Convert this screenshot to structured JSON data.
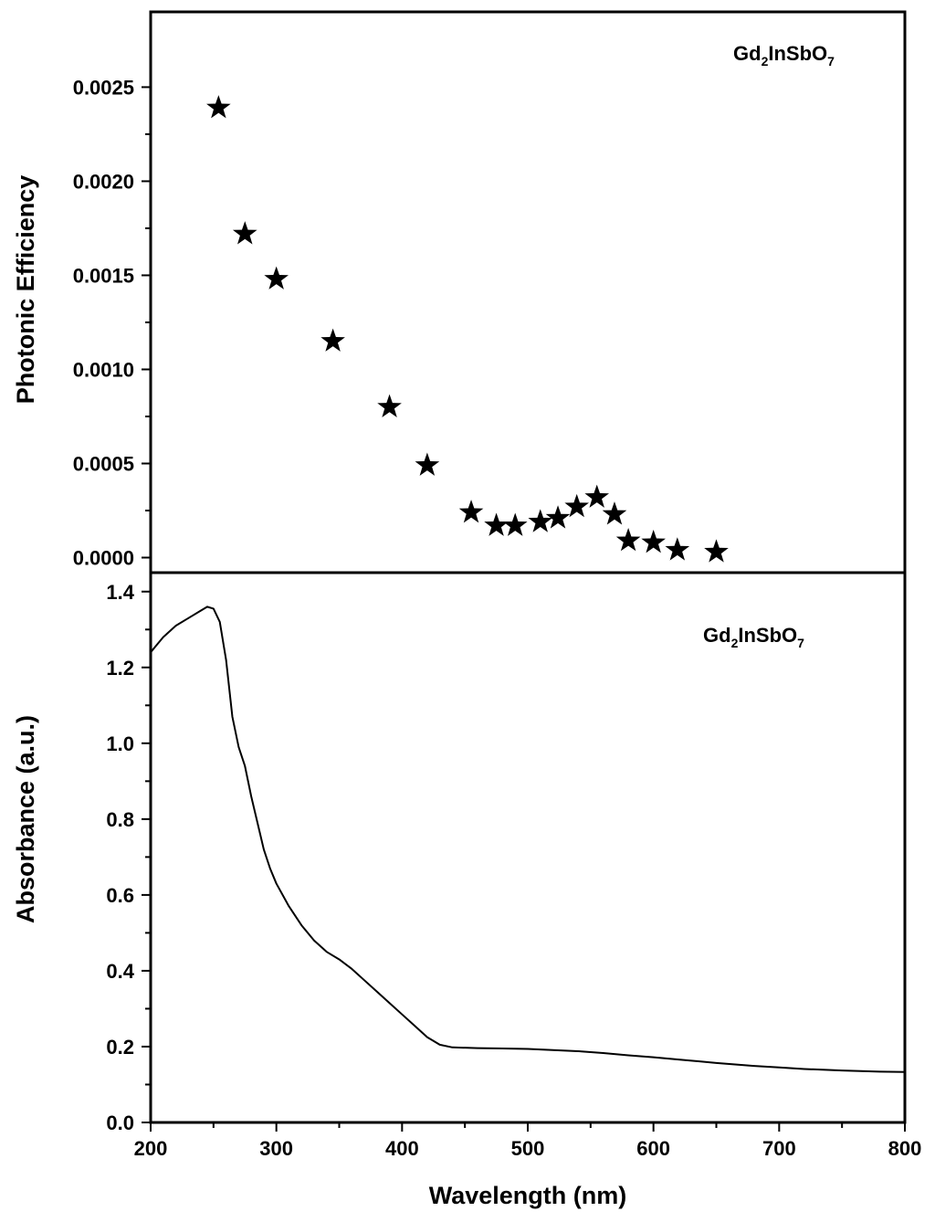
{
  "chart_data": [
    {
      "type": "scatter",
      "panel": "top",
      "ylabel": "Photonic Efficiency",
      "xlabel": "",
      "xlim": [
        200,
        800
      ],
      "ylim": [
        -8e-05,
        0.0029
      ],
      "yticks": [
        "0.0000",
        "0.0005",
        "0.0010",
        "0.0015",
        "0.0020",
        "0.0025"
      ],
      "ytick_values": [
        0,
        0.0005,
        0.001,
        0.0015,
        0.002,
        0.0025
      ],
      "marker": "star",
      "annotation": {
        "base": "Gd",
        "sub1": "2",
        "mid": "InSbO",
        "sub2": "7"
      },
      "series": [
        {
          "name": "Gd2InSbO7",
          "x": [
            254,
            275,
            300,
            345,
            390,
            420,
            455,
            475,
            490,
            510,
            524,
            539,
            555,
            569,
            580,
            600,
            619,
            650
          ],
          "y": [
            0.00239,
            0.00172,
            0.00148,
            0.00115,
            0.0008,
            0.00049,
            0.00024,
            0.00017,
            0.00017,
            0.00019,
            0.00021,
            0.00027,
            0.00032,
            0.00023,
            9e-05,
            8e-05,
            4e-05,
            3e-05
          ]
        }
      ]
    },
    {
      "type": "line",
      "panel": "bottom",
      "ylabel": "Absorbance (a.u.)",
      "xlabel": "Wavelength (nm)",
      "xlim": [
        200,
        800
      ],
      "ylim": [
        0,
        1.45
      ],
      "xticks": [
        "200",
        "300",
        "400",
        "500",
        "600",
        "700",
        "800"
      ],
      "xtick_values": [
        200,
        300,
        400,
        500,
        600,
        700,
        800
      ],
      "yticks": [
        "0.0",
        "0.2",
        "0.4",
        "0.6",
        "0.8",
        "1.0",
        "1.2",
        "1.4"
      ],
      "ytick_values": [
        0,
        0.2,
        0.4,
        0.6,
        0.8,
        1.0,
        1.2,
        1.4
      ],
      "annotation": {
        "base": "Gd",
        "sub1": "2",
        "mid": "InSbO",
        "sub2": "7"
      },
      "series": [
        {
          "name": "Gd2InSbO7",
          "x": [
            200,
            205,
            210,
            220,
            230,
            240,
            245,
            250,
            255,
            260,
            265,
            270,
            275,
            280,
            285,
            290,
            295,
            300,
            310,
            320,
            330,
            340,
            350,
            360,
            370,
            380,
            390,
            400,
            410,
            420,
            430,
            440,
            460,
            480,
            500,
            520,
            540,
            560,
            580,
            600,
            620,
            650,
            680,
            700,
            720,
            750,
            780,
            800
          ],
          "y": [
            1.24,
            1.26,
            1.28,
            1.31,
            1.33,
            1.35,
            1.36,
            1.355,
            1.32,
            1.22,
            1.07,
            0.99,
            0.94,
            0.86,
            0.79,
            0.72,
            0.67,
            0.63,
            0.57,
            0.52,
            0.48,
            0.45,
            0.43,
            0.405,
            0.375,
            0.345,
            0.315,
            0.285,
            0.255,
            0.225,
            0.205,
            0.198,
            0.196,
            0.195,
            0.194,
            0.191,
            0.188,
            0.183,
            0.177,
            0.172,
            0.166,
            0.157,
            0.149,
            0.145,
            0.141,
            0.137,
            0.134,
            0.133
          ]
        }
      ]
    }
  ]
}
